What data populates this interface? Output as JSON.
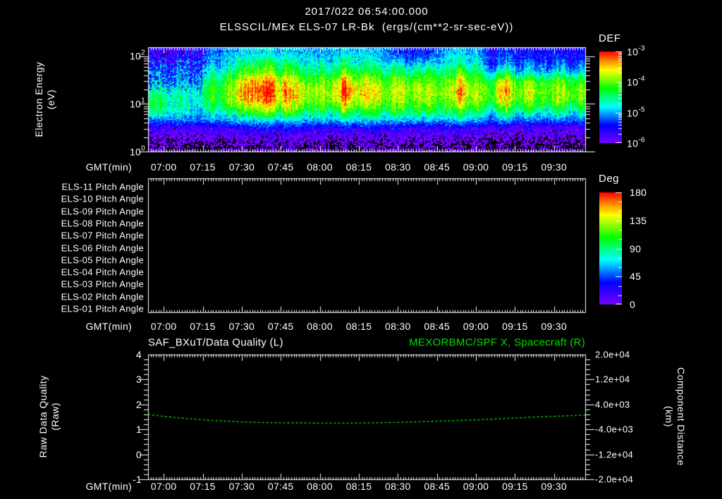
{
  "colors": {
    "background": "#000000",
    "foreground": "#ffffff",
    "accent_green": "#00dd00",
    "colormap_stops": [
      [
        0,
        "#7a00ff"
      ],
      [
        0.2,
        "#0000ff"
      ],
      [
        0.4,
        "#00ffff"
      ],
      [
        0.6,
        "#00ff00"
      ],
      [
        0.8,
        "#ffff00"
      ],
      [
        0.9,
        "#ff8c00"
      ],
      [
        1,
        "#ff0000"
      ]
    ]
  },
  "header": {
    "datetime": "2017/022 06:54:00.000",
    "title": "ELSSCIL/MEx ELS-07 LR-Bk  (ergs/(cm**2-sr-sec-eV))"
  },
  "time_axis": {
    "label": "GMT(min)",
    "tick_labels": [
      "07:00",
      "07:15",
      "07:30",
      "07:45",
      "08:00",
      "08:15",
      "08:30",
      "08:45",
      "09:00",
      "09:15",
      "09:30"
    ],
    "start": "06:54",
    "end": "09:42",
    "span_min": 168,
    "first_tick_offset_min": 6,
    "tick_interval_min": 15
  },
  "spectrogram_panel": {
    "ylabel": "Electron Energy",
    "ylabel_units": "(eV)",
    "ytick_exponents": [
      "2",
      "1",
      "0"
    ],
    "colorbar": {
      "title": "DEF",
      "tick_exponents": [
        "-3",
        "-4",
        "-5",
        "-6"
      ]
    }
  },
  "pitch_panel": {
    "row_labels": [
      "ELS-11 Pitch Angle",
      "ELS-10 Pitch Angle",
      "ELS-09 Pitch Angle",
      "ELS-08 Pitch Angle",
      "ELS-07 Pitch Angle",
      "ELS-06 Pitch Angle",
      "ELS-05 Pitch Angle",
      "ELS-04 Pitch Angle",
      "ELS-03 Pitch Angle",
      "ELS-02 Pitch Angle",
      "ELS-01 Pitch Angle"
    ],
    "colorbar": {
      "title": "Deg",
      "tick_labels": [
        "180",
        "135",
        "90",
        "45",
        "0"
      ]
    }
  },
  "line_panel": {
    "title_left": "SAF_BXuT/Data Quality (L)",
    "title_right": "MEXORBMC/SPF X, Spacecraft (R)",
    "ylabel_left": "Raw Data Quality",
    "ylabel_left_units": "(Raw)",
    "ylabel_right": "Component Distance",
    "ylabel_right_units": "(km)",
    "ytick_left": [
      "4",
      "3",
      "2",
      "1",
      "0",
      "-1"
    ],
    "ytick_right": [
      "2.0e+04",
      "1.2e+04",
      "4.0e+03",
      "-4.0e+03",
      "-1.2e+04",
      "-2.0e+04"
    ]
  },
  "chart_data": [
    {
      "type": "heatmap",
      "title": "ELSSCIL/MEx ELS-07 LR-Bk",
      "units": "ergs/(cm**2-sr-sec-eV)",
      "x_start": "06:54",
      "x_span_min": 168,
      "y_scale": "log",
      "y_range_ev": [
        1,
        155
      ],
      "color_range_log10": [
        -6,
        -3
      ],
      "grid": {
        "t_step_min": 6,
        "elog_rows": [
          2.1,
          1.9,
          1.7,
          1.5,
          1.3,
          1.1,
          0.9,
          0.7,
          0.5,
          0.3,
          0.1
        ],
        "log10_flux_rows": [
          [
            -5.7,
            -5.7,
            -5.5,
            -5.5,
            -5.2,
            -5.0,
            -4.9,
            -4.9,
            -4.9,
            -5.0,
            -5.0,
            -5.0,
            -4.9,
            -4.9,
            -5.0,
            -5.0,
            -5.4,
            -5.4,
            -5.4,
            -5.0,
            -4.9,
            -5.0,
            -5.5,
            -5.4,
            -5.5,
            -5.5,
            -5.5,
            -5.5,
            -5.5
          ],
          [
            -5.5,
            -5.5,
            -5.3,
            -5.3,
            -5.0,
            -4.8,
            -4.6,
            -4.6,
            -4.6,
            -4.8,
            -4.8,
            -4.8,
            -4.6,
            -4.6,
            -4.8,
            -4.8,
            -5.1,
            -5.1,
            -5.1,
            -4.8,
            -4.6,
            -4.8,
            -5.3,
            -5.2,
            -5.3,
            -5.3,
            -5.3,
            -5.3,
            -5.3
          ],
          [
            -5.3,
            -5.3,
            -5.1,
            -5.1,
            -4.7,
            -4.5,
            -4.2,
            -4.2,
            -4.2,
            -4.5,
            -4.5,
            -4.5,
            -4.2,
            -4.2,
            -4.5,
            -4.5,
            -4.6,
            -4.6,
            -4.6,
            -4.5,
            -4.2,
            -4.5,
            -5.0,
            -4.7,
            -5.0,
            -5.0,
            -5.0,
            -5.0,
            -5.0
          ],
          [
            -5.1,
            -5.1,
            -4.9,
            -4.9,
            -4.4,
            -4.1,
            -3.7,
            -3.7,
            -3.7,
            -4.1,
            -4.1,
            -4.1,
            -3.7,
            -3.7,
            -4.1,
            -4.1,
            -4.1,
            -4.1,
            -4.1,
            -4.1,
            -3.7,
            -4.1,
            -4.2,
            -3.9,
            -4.2,
            -4.2,
            -4.2,
            -4.2,
            -4.2
          ],
          [
            -4.8,
            -4.8,
            -4.7,
            -4.7,
            -4.2,
            -3.9,
            -3.5,
            -3.5,
            -3.5,
            -3.9,
            -3.9,
            -3.9,
            -3.5,
            -3.5,
            -3.9,
            -3.9,
            -3.9,
            -3.9,
            -3.9,
            -3.9,
            -3.5,
            -3.9,
            -3.95,
            -3.7,
            -3.95,
            -3.95,
            -3.95,
            -3.95,
            -3.95
          ],
          [
            -4.5,
            -4.5,
            -4.6,
            -4.6,
            -4.2,
            -3.95,
            -3.6,
            -3.6,
            -3.6,
            -3.95,
            -3.95,
            -3.95,
            -3.6,
            -3.6,
            -3.95,
            -3.95,
            -4.0,
            -4.0,
            -4.0,
            -3.95,
            -3.6,
            -3.95,
            -4.05,
            -3.9,
            -4.05,
            -4.05,
            -4.05,
            -4.05,
            -4.05
          ],
          [
            -4.6,
            -4.6,
            -4.7,
            -4.7,
            -4.5,
            -4.3,
            -4.1,
            -4.1,
            -4.1,
            -4.3,
            -4.3,
            -4.3,
            -4.1,
            -4.1,
            -4.3,
            -4.3,
            -4.3,
            -4.3,
            -4.3,
            -4.3,
            -4.1,
            -4.3,
            -4.5,
            -4.4,
            -4.5,
            -4.5,
            -4.5,
            -4.5,
            -4.5
          ],
          [
            -5.1,
            -5.1,
            -5.0,
            -5.0,
            -5.0,
            -4.9,
            -4.8,
            -4.8,
            -4.8,
            -4.9,
            -4.9,
            -4.9,
            -4.8,
            -4.8,
            -4.9,
            -4.9,
            -4.9,
            -4.9,
            -4.9,
            -4.9,
            -4.8,
            -4.9,
            -5.1,
            -5.0,
            -5.1,
            -5.1,
            -5.1,
            -5.1,
            -5.1
          ],
          [
            -5.8,
            -5.8,
            -5.7,
            -5.7,
            -5.65,
            -5.6,
            -5.6,
            -5.6,
            -5.6,
            -5.6,
            -5.6,
            -5.6,
            -5.6,
            -5.6,
            -5.6,
            -5.6,
            -5.7,
            -5.7,
            -5.7,
            -5.6,
            -5.6,
            -5.6,
            -5.8,
            -5.8,
            -5.8,
            -5.8,
            -5.8,
            -5.8,
            -5.8
          ],
          [
            -6.1,
            -6.1,
            -6.0,
            -6.0,
            -6.0,
            -6.0,
            -6.0,
            -6.0,
            -6.0,
            -6.0,
            -6.0,
            -6.0,
            -6.0,
            -6.0,
            -6.0,
            -6.0,
            -6.05,
            -6.05,
            -6.05,
            -6.0,
            -6.0,
            -6.0,
            -6.1,
            -6.1,
            -6.1,
            -6.1,
            -6.1,
            -6.1,
            -6.1
          ],
          [
            -6.2,
            -6.2,
            -6.2,
            -6.2,
            -6.2,
            -6.15,
            -6.15,
            -6.15,
            -6.15,
            -6.15,
            -6.15,
            -6.15,
            -6.15,
            -6.15,
            -6.15,
            -6.15,
            -6.2,
            -6.2,
            -6.2,
            -6.15,
            -6.15,
            -6.15,
            -6.25,
            -6.25,
            -6.25,
            -6.25,
            -6.25,
            -6.25,
            -6.25
          ]
        ]
      },
      "streak_minutes": [
        39,
        46,
        53,
        58,
        76,
        83,
        88,
        121,
        136
      ]
    },
    {
      "type": "empty-panel"
    },
    {
      "type": "line",
      "left_range": [
        -1,
        4
      ],
      "right_range": [
        -20000,
        20000
      ],
      "series": [
        {
          "name": "MEXORBMC/SPF X, Spacecraft (R)",
          "color": "#00dd00",
          "style": "dashed",
          "axis": "right",
          "x_min": [
            0,
            6,
            12,
            18,
            24,
            30,
            36,
            42,
            48,
            54,
            60,
            66,
            72,
            78,
            84,
            90,
            96,
            102,
            108,
            114,
            120,
            126,
            132,
            138,
            144,
            150,
            156,
            162,
            168
          ],
          "y_left_units": [
            1.6,
            1.52,
            1.46,
            1.41,
            1.36,
            1.33,
            1.3,
            1.28,
            1.27,
            1.26,
            1.26,
            1.25,
            1.25,
            1.25,
            1.26,
            1.27,
            1.28,
            1.3,
            1.32,
            1.34,
            1.36,
            1.38,
            1.41,
            1.44,
            1.47,
            1.5,
            1.52,
            1.55,
            1.57
          ],
          "right_axis_km_per_left_unit": 8000,
          "right_axis_zero_at_left_value": 1.5
        }
      ]
    }
  ]
}
